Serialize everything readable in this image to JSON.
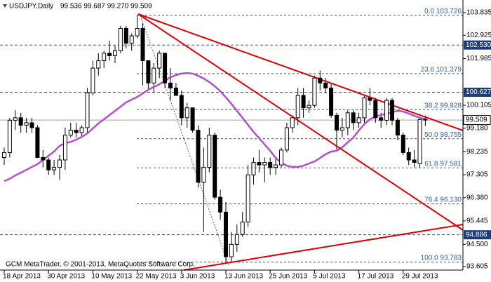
{
  "chart_data": {
    "type": "candlestick",
    "symbol": "USDJPY,Daily",
    "quote": "99.536 99.687 99.270 99.509",
    "watermark": "GCM MetaTrader, © 2001-2013, MetaQuotes Software Corp.",
    "categories": [
      "18 Apr 2013",
      null,
      null,
      null,
      null,
      null,
      null,
      null,
      "30 Apr 2013",
      null,
      null,
      null,
      null,
      null,
      null,
      null,
      "10 May 2013",
      null,
      null,
      null,
      null,
      null,
      null,
      null,
      "22 May 2013",
      null,
      null,
      null,
      null,
      null,
      null,
      null,
      "3 Jun 2013",
      null,
      null,
      null,
      null,
      null,
      null,
      null,
      "13 Jun 2013",
      null,
      null,
      null,
      null,
      null,
      null,
      null,
      "25 Jun 2013",
      null,
      null,
      null,
      null,
      null,
      null,
      null,
      "5 Jul 2013",
      null,
      null,
      null,
      null,
      null,
      null,
      null,
      "17 Jul 2013",
      null,
      null,
      null,
      null,
      null,
      null,
      null,
      "29 Jul 2013",
      null,
      null,
      null,
      null
    ],
    "open": [
      98.0,
      98.2,
      99.5,
      99.6,
      99.3,
      99.4,
      99.2,
      98.0,
      97.9,
      97.5,
      97.6,
      97.9,
      98.9,
      99.1,
      99.0,
      99.2,
      100.6,
      101.6,
      101.9,
      102.2,
      102.1,
      102.3,
      103.2,
      102.6,
      102.9,
      103.2,
      101.9,
      101.0,
      101.6,
      102.2,
      101.0,
      100.8,
      100.5,
      99.6,
      100.0,
      99.1,
      97.0,
      97.6,
      98.9,
      96.4,
      95.8,
      94.0,
      94.5,
      94.9,
      95.4,
      97.3,
      97.8,
      97.7,
      97.8,
      97.6,
      97.7,
      98.3,
      99.2,
      99.6,
      100.5,
      100.0,
      100.1,
      101.2,
      101.0,
      100.8,
      99.7,
      99.1,
      99.2,
      99.8,
      99.4,
      99.6,
      100.4,
      100.3,
      99.6,
      99.5,
      100.3,
      99.5,
      98.9,
      98.2,
      97.9,
      97.75,
      99.536
    ],
    "high": [
      98.4,
      99.6,
      99.9,
      99.8,
      99.6,
      99.6,
      99.3,
      98.3,
      98.0,
      97.9,
      98.1,
      99.2,
      99.4,
      99.4,
      99.3,
      100.8,
      101.9,
      102.2,
      102.3,
      102.7,
      102.5,
      103.3,
      103.3,
      103.0,
      103.73,
      103.4,
      101.9,
      101.8,
      102.3,
      102.2,
      101.6,
      101.0,
      100.7,
      100.2,
      100.0,
      99.3,
      98.4,
      99.2,
      99.0,
      96.7,
      96.2,
      95.0,
      95.3,
      95.8,
      97.7,
      98.0,
      98.3,
      98.0,
      98.0,
      98.0,
      98.4,
      99.4,
      99.7,
      100.8,
      100.8,
      100.3,
      101.3,
      101.5,
      101.2,
      101.0,
      99.8,
      99.6,
      99.9,
      99.9,
      99.8,
      100.5,
      100.8,
      100.4,
      99.8,
      100.4,
      100.4,
      99.6,
      99.0,
      98.4,
      98.3,
      99.6,
      99.687
    ],
    "low": [
      97.7,
      98.0,
      99.1,
      99.0,
      99.0,
      99.0,
      98.0,
      97.6,
      97.3,
      97.3,
      97.1,
      97.5,
      98.8,
      98.8,
      98.8,
      99.0,
      100.5,
      101.3,
      101.6,
      101.9,
      101.8,
      102.2,
      102.4,
      102.3,
      102.8,
      100.9,
      100.7,
      100.6,
      101.2,
      100.8,
      100.3,
      100.5,
      99.3,
      99.2,
      99.0,
      96.8,
      95.0,
      97.4,
      96.3,
      95.5,
      93.78,
      93.8,
      94.2,
      94.8,
      95.2,
      96.9,
      97.4,
      97.0,
      97.3,
      97.3,
      97.6,
      98.2,
      99.0,
      99.3,
      99.6,
      99.8,
      100.0,
      100.7,
      100.6,
      99.6,
      98.3,
      98.8,
      98.9,
      99.1,
      99.2,
      99.4,
      100.1,
      99.4,
      99.2,
      99.3,
      99.3,
      98.7,
      98.1,
      97.7,
      97.6,
      97.6,
      99.27
    ],
    "close": [
      98.2,
      99.5,
      99.6,
      99.3,
      99.4,
      99.2,
      98.0,
      97.9,
      97.5,
      97.6,
      97.9,
      98.9,
      99.1,
      99.0,
      99.2,
      100.6,
      101.6,
      101.9,
      102.2,
      102.1,
      102.3,
      103.2,
      102.6,
      102.9,
      103.2,
      101.9,
      101.0,
      101.6,
      102.2,
      101.0,
      100.8,
      100.5,
      99.6,
      100.0,
      99.1,
      97.0,
      97.6,
      98.9,
      96.4,
      95.8,
      94.0,
      94.5,
      94.9,
      95.4,
      97.3,
      97.8,
      97.7,
      97.8,
      97.6,
      97.7,
      98.3,
      99.2,
      99.6,
      100.5,
      100.0,
      100.1,
      101.2,
      101.0,
      100.8,
      99.7,
      99.1,
      99.2,
      99.8,
      99.4,
      99.6,
      100.4,
      100.3,
      99.6,
      99.5,
      100.3,
      99.5,
      98.9,
      98.2,
      97.9,
      97.8,
      99.53,
      99.509
    ],
    "ma": {
      "color": "#b44fd0",
      "values": [
        97.05,
        97.14,
        97.28,
        97.39,
        97.5,
        97.62,
        97.73,
        97.9,
        98.07,
        98.24,
        98.47,
        98.58,
        98.63,
        98.72,
        98.83,
        98.97,
        99.17,
        99.37,
        99.54,
        99.71,
        99.88,
        100.05,
        100.22,
        100.33,
        100.44,
        100.58,
        100.73,
        100.84,
        100.95,
        101.09,
        101.23,
        101.32,
        101.38,
        101.4,
        101.38,
        101.29,
        101.18,
        101.04,
        100.87,
        100.67,
        100.42,
        100.16,
        99.88,
        99.6,
        99.31,
        99.03,
        98.78,
        98.52,
        98.27,
        97.98,
        97.79,
        97.67,
        97.62,
        97.62,
        97.67,
        97.76,
        97.84,
        97.98,
        98.13,
        98.24,
        98.27,
        98.41,
        98.61,
        98.8,
        99.09,
        99.34,
        99.54,
        99.65,
        99.71,
        99.77,
        99.82,
        99.88,
        99.85,
        99.77,
        99.68,
        99.6,
        99.54
      ]
    },
    "ylim": [
      93.464,
      104.344
    ],
    "yticks": [
      103.835,
      102.925,
      101.985,
      100.105,
      {
        "value": 99.18,
        "label": "99.180"
      },
      98.235,
      97.305,
      {
        "value": 96.38,
        "label": "96.380"
      },
      95.445,
      {
        "value": 94.5,
        "label": "94.500"
      },
      93.605
    ],
    "price_lines": [
      {
        "value": 102.53,
        "label": "102.530"
      },
      {
        "value": 100.627,
        "label": "100.627"
      },
      {
        "value": 94.886,
        "label": "94.886"
      }
    ],
    "last_price": 99.509,
    "fibo": [
      {
        "level": "0.0",
        "price": 103.726
      },
      {
        "level": "23.6",
        "price": 101.379
      },
      {
        "level": "38.2",
        "price": 99.928
      },
      {
        "level": "50.0",
        "price": 98.755
      },
      {
        "level": "61.8",
        "price": 97.581
      },
      {
        "level": "76.4",
        "price": 96.13,
        "price_label": "96.130"
      },
      {
        "level": "100.0",
        "price": 93.783
      }
    ]
  }
}
